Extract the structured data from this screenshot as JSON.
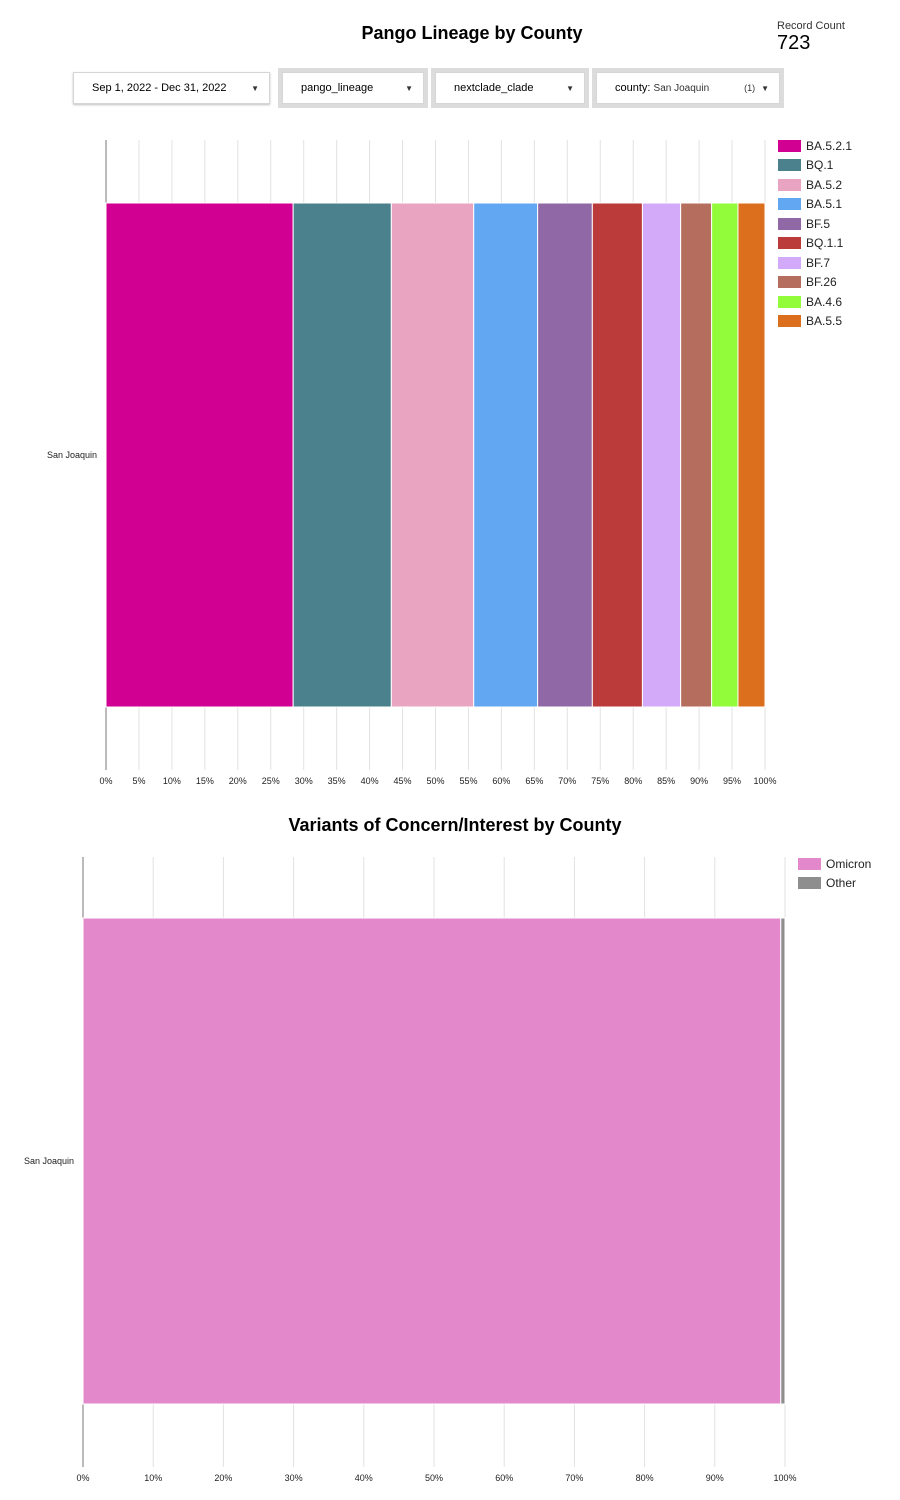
{
  "header": {
    "title": "Pango Lineage by County",
    "record_count_label": "Record Count",
    "record_count_value": "723"
  },
  "filters": {
    "date_range": "Sep 1, 2022 - Dec 31, 2022",
    "pango_lineage": "pango_lineage",
    "nextclade_clade": "nextclade_clade",
    "county_key": "county:",
    "county_value": "San Joaquin",
    "county_count": "(1)"
  },
  "chart_data": [
    {
      "type": "bar",
      "orientation": "horizontal",
      "stacked": "100%",
      "title": "Pango Lineage by County",
      "categories": [
        "San Joaquin"
      ],
      "series": [
        {
          "name": "BA.5.2.1",
          "values": [
            28.4
          ],
          "color": "#d20092"
        },
        {
          "name": "BQ.1",
          "values": [
            14.9
          ],
          "color": "#4b818c"
        },
        {
          "name": "BA.5.2",
          "values": [
            12.5
          ],
          "color": "#e8a4c0"
        },
        {
          "name": "BA.5.1",
          "values": [
            9.7
          ],
          "color": "#61a7f1"
        },
        {
          "name": "BF.5",
          "values": [
            8.3
          ],
          "color": "#8f68a5"
        },
        {
          "name": "BQ.1.1",
          "values": [
            7.6
          ],
          "color": "#bb3a3a"
        },
        {
          "name": "BF.7",
          "values": [
            5.8
          ],
          "color": "#d3aafa"
        },
        {
          "name": "BF.26",
          "values": [
            4.7
          ],
          "color": "#b56e5e"
        },
        {
          "name": "BA.4.6",
          "values": [
            4.0
          ],
          "color": "#92fb3a"
        },
        {
          "name": "BA.5.5",
          "values": [
            4.1
          ],
          "color": "#dc6f1d"
        }
      ],
      "xlim": [
        0,
        100
      ],
      "xticks": [
        "0%",
        "5%",
        "10%",
        "15%",
        "20%",
        "25%",
        "30%",
        "35%",
        "40%",
        "45%",
        "50%",
        "55%",
        "60%",
        "65%",
        "70%",
        "75%",
        "80%",
        "85%",
        "90%",
        "95%",
        "100%"
      ],
      "grid": true,
      "legend": "right"
    },
    {
      "type": "bar",
      "orientation": "horizontal",
      "stacked": "100%",
      "title": "Variants of Concern/Interest by County",
      "categories": [
        "San Joaquin"
      ],
      "series": [
        {
          "name": "Omicron",
          "values": [
            99.4
          ],
          "color": "#e488cc"
        },
        {
          "name": "Other",
          "values": [
            0.6
          ],
          "color": "#8e8e8e"
        }
      ],
      "xlim": [
        0,
        100
      ],
      "xticks": [
        "0%",
        "10%",
        "20%",
        "30%",
        "40%",
        "50%",
        "60%",
        "70%",
        "80%",
        "90%",
        "100%"
      ],
      "grid": true,
      "legend": "right"
    }
  ]
}
